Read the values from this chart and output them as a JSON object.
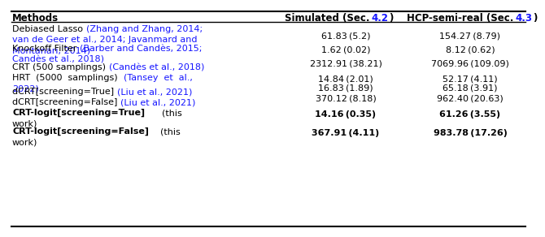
{
  "col_headers": [
    "Methods",
    "Simulated (Sec. ",
    "4.2",
    ")",
    "HCP-semi-real (Sec. ",
    "4.3",
    ")"
  ],
  "link_color": "#1515FF",
  "rows": [
    {
      "black": "Debiased Lasso ",
      "blue": "(Zhang and Zhang, 2014;",
      "blue2": "van de Geer et al., 2014; Javanmard and",
      "blue3": "Montanari, 2014)",
      "nlines": 3,
      "sim": "61.83 (5.2)",
      "hcp": "154.27 (8.79)",
      "bold": false,
      "val_line": 0
    },
    {
      "black": "Knockoff Filter ",
      "blue": "(Barber and Candès, 2015;",
      "blue2": "Candès et al., 2018)",
      "nlines": 2,
      "sim": "1.62 (0.02)",
      "hcp": "8.12 (0.62)",
      "bold": false,
      "val_line": 0
    },
    {
      "black": "CRT (500 samplings) ",
      "blue": "(Candès et al., 2018)",
      "nlines": 1,
      "sim": "2312.91 (38.21)",
      "hcp": "7069.96 (109.09)",
      "bold": false,
      "val_line": 0
    },
    {
      "black": "HRT  (5000  samplings)  ",
      "blue": "(Tansey  et  al.,",
      "blue2": "2022)",
      "nlines": 2,
      "sim": "14.84 (2.01)",
      "hcp": "52.17 (4.11)",
      "bold": false,
      "val_line": 0
    },
    {
      "black": "dCRT[screening=True] ",
      "blue": "(Liu et al., 2021)",
      "nlines": 1,
      "sim": "16.83 (1.89)",
      "hcp": "65.18 (3.91)",
      "bold": false,
      "val_line": 0
    },
    {
      "black": "dCRT[screening=False] ",
      "blue": "(Liu et al., 2021)",
      "nlines": 1,
      "sim": "370.12 (8.18)",
      "hcp": "962.40 (20.63)",
      "bold": false,
      "val_line": 0
    },
    {
      "black": "CRT-logit[screening=True]",
      "black_bold": true,
      "blue": "      (this",
      "blue2": "work)",
      "blue_color": "black",
      "nlines": 2,
      "sim": "14.16 (0.35)",
      "hcp": "61.26 (3.55)",
      "bold": true,
      "val_line": 0
    },
    {
      "black": "CRT-logit[screening=False]",
      "black_bold": true,
      "blue": "    (this",
      "blue2": "work)",
      "blue_color": "black",
      "nlines": 2,
      "sim": "367.91 (4.11)",
      "hcp": "983.78 (17.26)",
      "bold": true,
      "val_line": 0
    }
  ]
}
